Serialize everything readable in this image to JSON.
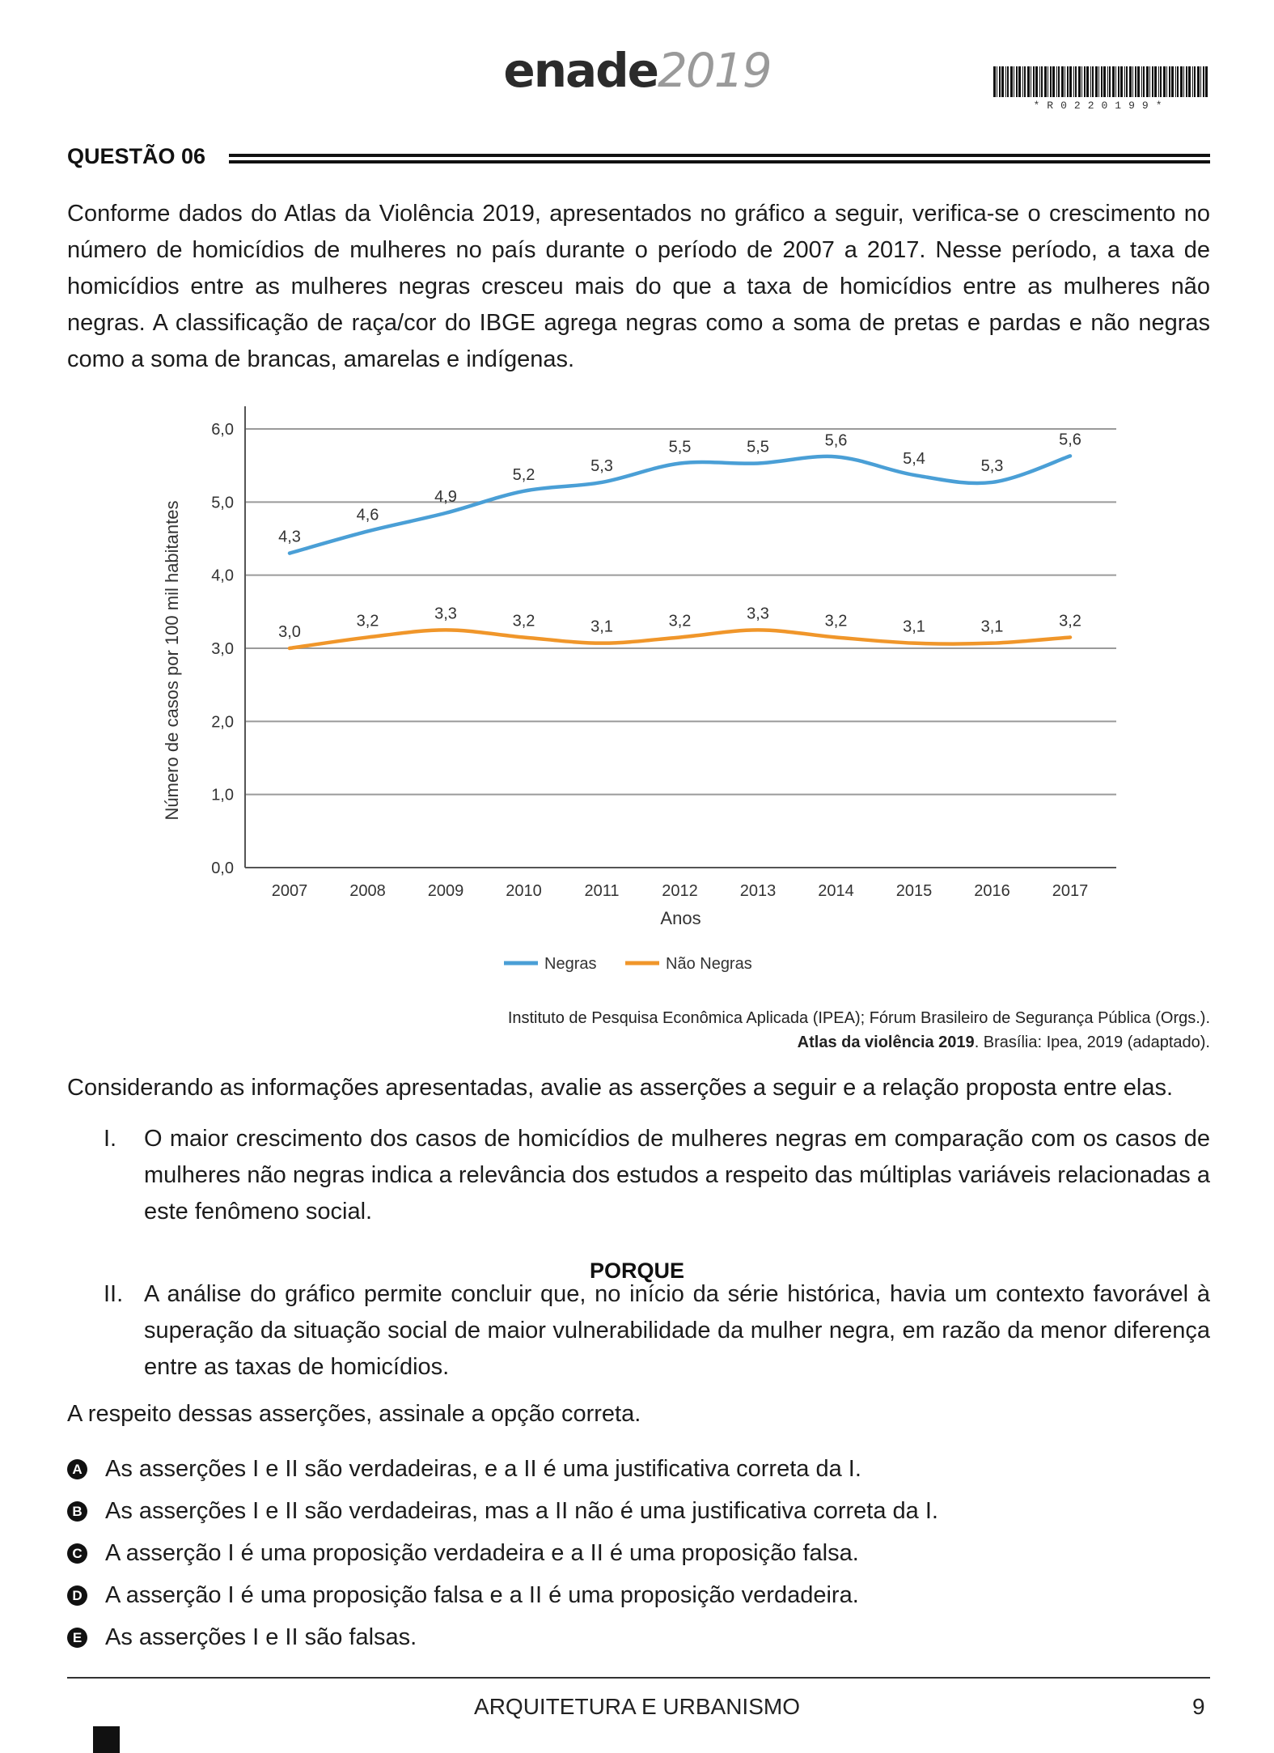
{
  "header": {
    "logo_main": "enade",
    "logo_year": "2019",
    "barcode_text": "*R0220199*"
  },
  "question": {
    "title": "QUESTÃO 06",
    "intro": "Conforme dados do Atlas da Violência 2019, apresentados no gráfico a seguir, verifica-se o crescimento no número de homicídios de mulheres no país durante o período de 2007 a 2017. Nesse período, a taxa de homicídios entre as mulheres negras cresceu mais do que a taxa de homicídios entre as mulheres não negras. A classificação de raça/cor do IBGE agrega negras como a soma de pretas e pardas e não negras como a soma de brancas, amarelas e indígenas."
  },
  "chart_data": {
    "type": "line",
    "x": [
      "2007",
      "2008",
      "2009",
      "2010",
      "2011",
      "2012",
      "2013",
      "2014",
      "2015",
      "2016",
      "2017"
    ],
    "series": [
      {
        "name": "Negras",
        "color": "#4a9fd6",
        "values": [
          4.3,
          4.6,
          4.85,
          5.15,
          5.27,
          5.53,
          5.53,
          5.62,
          5.37,
          5.27,
          5.63
        ],
        "labels": [
          "4,3",
          "4,6",
          "4,9",
          "5,2",
          "5,3",
          "5,5",
          "5,5",
          "5,6",
          "5,4",
          "5,3",
          "5,6"
        ]
      },
      {
        "name": "Não Negras",
        "color": "#f0962a",
        "values": [
          3.0,
          3.15,
          3.25,
          3.15,
          3.07,
          3.15,
          3.25,
          3.15,
          3.07,
          3.07,
          3.15
        ],
        "labels": [
          "3,0",
          "3,2",
          "3,3",
          "3,2",
          "3,1",
          "3,2",
          "3,3",
          "3,2",
          "3,1",
          "3,1",
          "3,2"
        ]
      }
    ],
    "yticks": [
      "0,0",
      "1,0",
      "2,0",
      "3,0",
      "4,0",
      "5,0",
      "6,0"
    ],
    "ylim": [
      0,
      6
    ],
    "xlabel": "Anos",
    "ylabel": "Número de casos por 100 mil habitantes",
    "grid": true,
    "legend": "bottom-center"
  },
  "citation": {
    "line1": "Instituto de Pesquisa Econômica Aplicada (IPEA); Fórum Brasileiro de Segurança Pública (Orgs.).",
    "line2_bold": "Atlas da violência 2019",
    "line2_rest": ". Brasília: Ipea, 2019 (adaptado)."
  },
  "prompt": "Considerando as informações apresentadas, avalie as asserções a seguir e a relação proposta entre elas.",
  "assertions": [
    {
      "num": "I.",
      "text": "O maior crescimento dos casos de homicídios de mulheres negras em comparação com os casos de mulheres não negras indica a relevância dos estudos a respeito das múltiplas variáveis relacionadas a este fenômeno social."
    },
    {
      "num": "II.",
      "text": "A análise do gráfico permite concluir que, no início da série histórica, havia um contexto favorável à superação da situação social de maior vulnerabilidade da mulher negra, em razão da menor diferença entre as taxas de homicídios."
    }
  ],
  "porque": "PORQUE",
  "instruction": "A respeito dessas asserções, assinale a opção correta.",
  "options": [
    {
      "letter": "A",
      "text": "As asserções I e II são verdadeiras, e a II é uma justificativa correta da I."
    },
    {
      "letter": "B",
      "text": "As asserções I e II são verdadeiras, mas a II não é uma justificativa correta da I."
    },
    {
      "letter": "C",
      "text": "A asserção I é uma proposição verdadeira e a II é uma proposição falsa."
    },
    {
      "letter": "D",
      "text": "A asserção I é uma proposição falsa e a II é uma proposição verdadeira."
    },
    {
      "letter": "E",
      "text": "As asserções I e II são falsas."
    }
  ],
  "footer": {
    "course": "ARQUITETURA E URBANISMO",
    "page": "9"
  }
}
